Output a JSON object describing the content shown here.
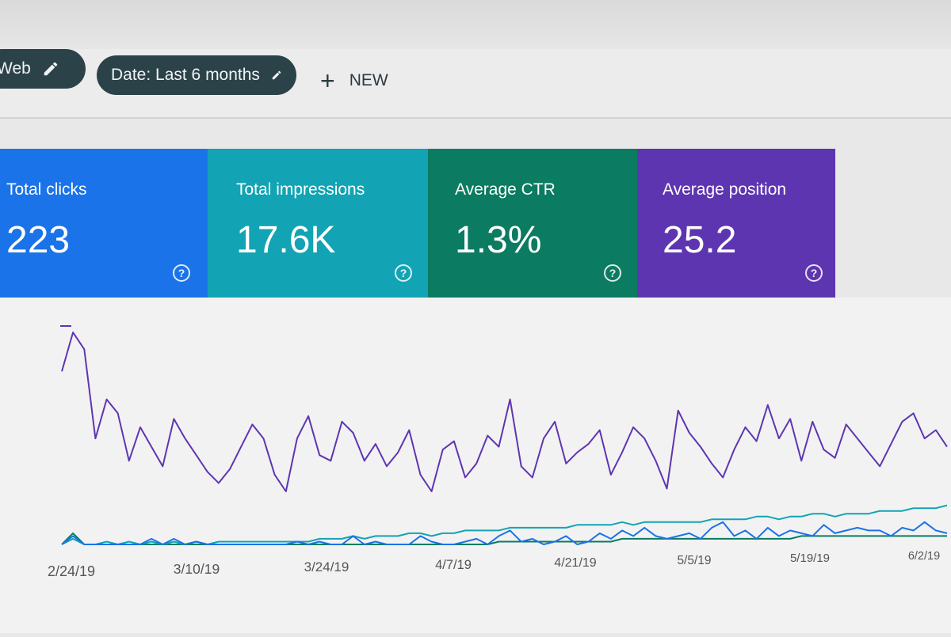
{
  "filters": {
    "type_chip": "Web",
    "date_chip": "Date: Last 6 months",
    "new_button": "NEW"
  },
  "metrics": [
    {
      "label": "Total clicks",
      "value": "223",
      "color": "#1a73e8"
    },
    {
      "label": "Total impressions",
      "value": "17.6K",
      "color": "#12a4b4"
    },
    {
      "label": "Average CTR",
      "value": "1.3%",
      "color": "#0b7b61"
    },
    {
      "label": "Average position",
      "value": "25.2",
      "color": "#5e35b1"
    }
  ],
  "help_glyph": "?",
  "chart_data": {
    "type": "line",
    "x_ticks": [
      "2/24/19",
      "3/10/19",
      "3/24/19",
      "4/7/19",
      "4/21/19",
      "5/5/19",
      "5/19/19",
      "6/2/19"
    ],
    "series": [
      {
        "color": "#5e35b1",
        "values": [
          62,
          76,
          70,
          38,
          52,
          47,
          30,
          42,
          35,
          28,
          45,
          38,
          32,
          26,
          22,
          27,
          35,
          43,
          38,
          25,
          19,
          38,
          46,
          32,
          30,
          44,
          40,
          30,
          36,
          28,
          33,
          41,
          25,
          19,
          34,
          37,
          24,
          29,
          39,
          35,
          52,
          28,
          24,
          38,
          44,
          29,
          33,
          36,
          41,
          25,
          33,
          42,
          38,
          30,
          20,
          48,
          40,
          35,
          29,
          24,
          34,
          42,
          37,
          50,
          38,
          45,
          30,
          44,
          34,
          31,
          43,
          38,
          33,
          28,
          36,
          44,
          47,
          38,
          41,
          35
        ]
      },
      {
        "color": "#1a73e8",
        "values": [
          0,
          3,
          0,
          0,
          0,
          0,
          0,
          0,
          2,
          0,
          2,
          0,
          1,
          0,
          0,
          0,
          0,
          0,
          0,
          0,
          0,
          1,
          0,
          1,
          0,
          0,
          3,
          0,
          1,
          0,
          0,
          0,
          3,
          1,
          0,
          0,
          1,
          2,
          0,
          3,
          5,
          1,
          2,
          0,
          1,
          3,
          0,
          1,
          4,
          2,
          5,
          3,
          6,
          3,
          2,
          3,
          4,
          2,
          6,
          8,
          3,
          5,
          2,
          6,
          3,
          5,
          4,
          3,
          7,
          4,
          5,
          6,
          5,
          5,
          3,
          6,
          5,
          8,
          5,
          4
        ]
      },
      {
        "color": "#12a4b4",
        "values": [
          0,
          2,
          0,
          0,
          1,
          0,
          1,
          0,
          1,
          0,
          1,
          0,
          1,
          0,
          1,
          1,
          1,
          1,
          1,
          1,
          1,
          1,
          1,
          2,
          2,
          2,
          3,
          2,
          3,
          3,
          3,
          4,
          4,
          3,
          4,
          4,
          5,
          5,
          5,
          5,
          6,
          6,
          6,
          6,
          6,
          6,
          7,
          7,
          7,
          7,
          8,
          7,
          8,
          8,
          8,
          8,
          8,
          8,
          9,
          9,
          9,
          9,
          10,
          10,
          9,
          10,
          10,
          11,
          11,
          10,
          11,
          11,
          11,
          12,
          12,
          12,
          13,
          13,
          13,
          14
        ]
      },
      {
        "color": "#0b7b61",
        "values": [
          0,
          4,
          0,
          0,
          0,
          0,
          0,
          0,
          0,
          0,
          0,
          0,
          0,
          0,
          0,
          0,
          0,
          0,
          0,
          0,
          0,
          0,
          0,
          0,
          0,
          0,
          0,
          0,
          0,
          0,
          0,
          0,
          0,
          0,
          0,
          0,
          0,
          0,
          0,
          1,
          1,
          1,
          1,
          1,
          1,
          1,
          1,
          1,
          1,
          1,
          2,
          2,
          2,
          2,
          2,
          2,
          2,
          2,
          2,
          2,
          2,
          2,
          2,
          2,
          2,
          2,
          3,
          3,
          3,
          3,
          3,
          3,
          3,
          3,
          3,
          3,
          3,
          3,
          3,
          3
        ]
      }
    ]
  }
}
